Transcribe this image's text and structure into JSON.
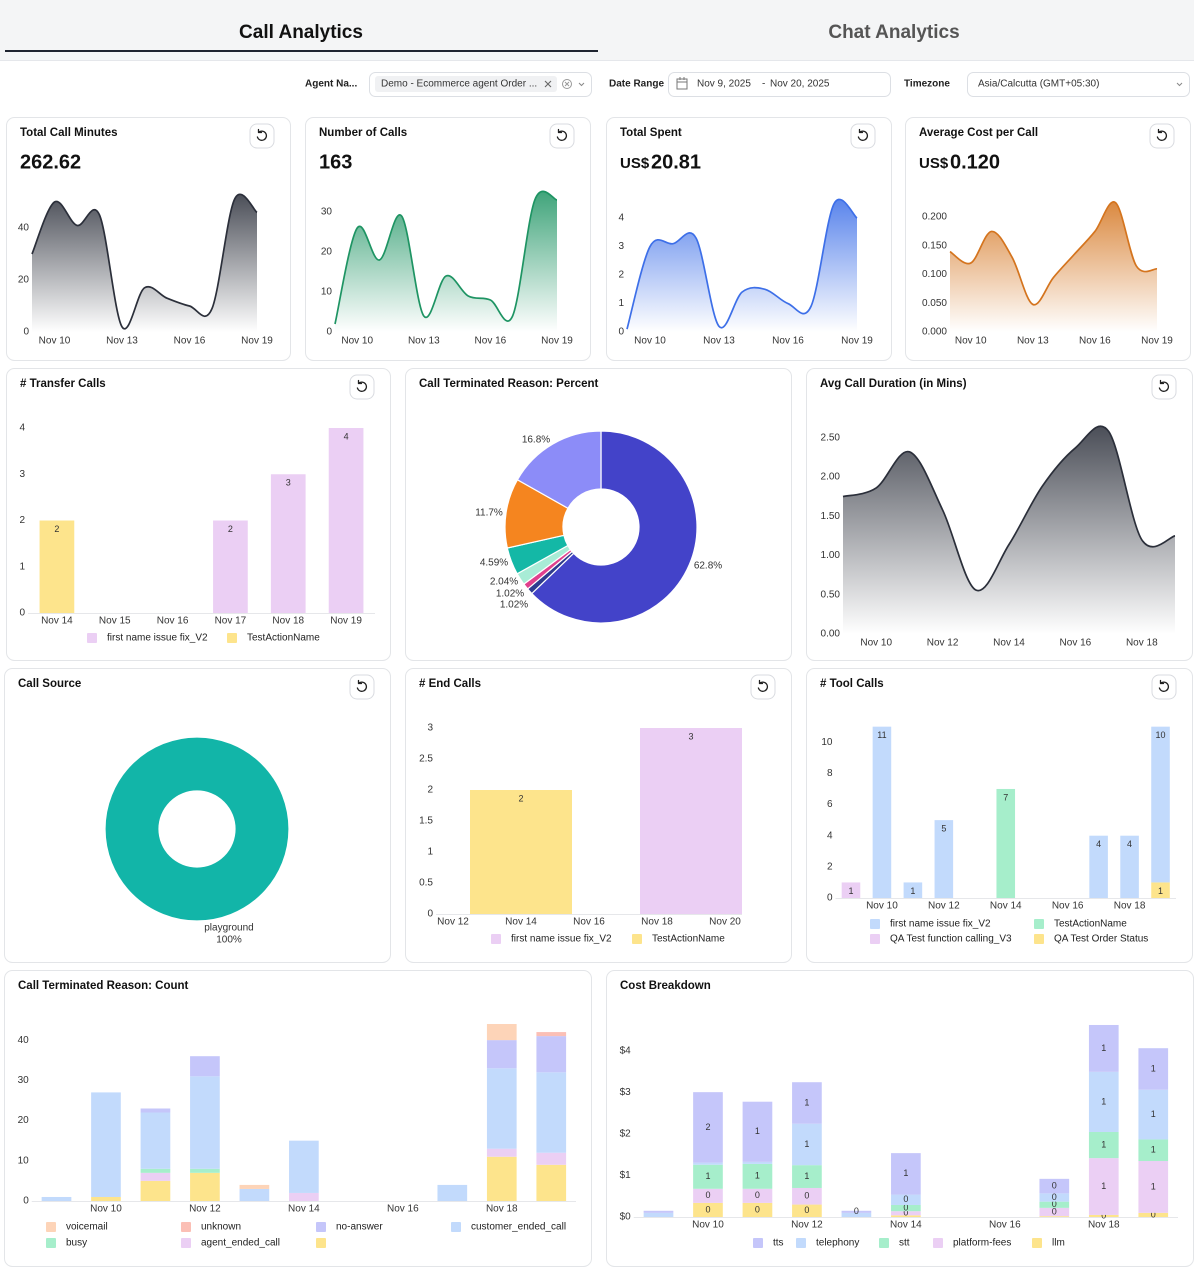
{
  "tabs": [
    {
      "label": "Call Analytics",
      "active": true
    },
    {
      "label": "Chat Analytics",
      "active": false
    }
  ],
  "filters": [
    {
      "label": "Agent Na...",
      "value": "Demo - Ecommerce agent Order ..."
    },
    {
      "label": "Date Range",
      "from": "Nov 9, 2025",
      "separator": "-",
      "to": "Nov 20, 2025"
    },
    {
      "label": "Timezone",
      "value": "Asia/Calcutta (GMT+05:30)"
    }
  ],
  "chart_data": [
    {
      "type": "area",
      "title": "Total Call Minutes",
      "summary": "262.62",
      "color": "#2b2f3a",
      "categories": [
        null,
        "Nov 10",
        null,
        null,
        "Nov 13",
        null,
        null,
        "Nov 16",
        null,
        null,
        "Nov 19"
      ],
      "values": [
        30,
        50,
        41,
        45,
        2,
        17,
        13,
        10,
        9,
        51,
        46
      ],
      "ylim": [
        0,
        55
      ],
      "yticks": [
        0,
        20,
        40
      ]
    },
    {
      "type": "area",
      "title": "Number of Calls",
      "summary": "163",
      "color": "#1e9463",
      "categories": [
        null,
        "Nov 10",
        null,
        null,
        "Nov 13",
        null,
        null,
        "Nov 16",
        null,
        null,
        "Nov 19"
      ],
      "values": [
        2,
        26,
        18,
        29,
        4,
        14,
        9,
        8,
        4,
        33,
        33
      ],
      "ylim": [
        0,
        35
      ],
      "yticks": [
        0,
        10,
        20,
        30
      ]
    },
    {
      "type": "area",
      "title": "Total Spent",
      "currency": "US$",
      "summary": "20.81",
      "color": "#3d6fe8",
      "categories": [
        null,
        "Nov 10",
        null,
        null,
        "Nov 13",
        null,
        null,
        "Nov 16",
        null,
        null,
        "Nov 19"
      ],
      "values": [
        0.1,
        3.0,
        3.1,
        3.3,
        0.2,
        1.4,
        1.5,
        1.0,
        0.9,
        4.5,
        4.0
      ],
      "ylim": [
        0,
        4.6
      ],
      "yticks": [
        0,
        1,
        2,
        3,
        4
      ]
    },
    {
      "type": "area",
      "title": "Average Cost per Call",
      "currency": "US$",
      "summary": "0.120",
      "color": "#d4741e",
      "categories": [
        null,
        "Nov 10",
        null,
        null,
        "Nov 13",
        null,
        null,
        "Nov 16",
        null,
        null,
        "Nov 19"
      ],
      "values": [
        0.14,
        0.12,
        0.175,
        0.13,
        0.048,
        0.095,
        0.135,
        0.175,
        0.225,
        0.115,
        0.11
      ],
      "ylim": [
        0,
        0.235
      ],
      "yticks": [
        {
          "value": 0,
          "label": "0.000"
        },
        {
          "value": 0.05,
          "label": "0.050"
        },
        {
          "value": 0.1,
          "label": "0.100"
        },
        {
          "value": 0.15,
          "label": "0.150"
        },
        {
          "value": 0.2,
          "label": "0.200"
        }
      ]
    },
    {
      "type": "bar",
      "title": "# Transfer Calls",
      "data_labels": true,
      "categories": [
        "Nov 14",
        "Nov 15",
        "Nov 16",
        "Nov 17",
        "Nov 18",
        "Nov 19"
      ],
      "series": [
        {
          "name": "first name issue fix_V2",
          "color": "#ebcff4",
          "values": [
            null,
            null,
            null,
            2,
            3,
            4
          ]
        },
        {
          "name": "TestActionName",
          "color": "#fde48c",
          "values": [
            2,
            null,
            null,
            null,
            null,
            null
          ]
        }
      ],
      "ylim": [
        0,
        4
      ],
      "yticks": [
        0,
        1,
        2,
        3,
        4
      ]
    },
    {
      "type": "donut",
      "title": "Call Terminated Reason: Percent",
      "values": [
        62.8,
        1.02,
        1.02,
        2.04,
        4.59,
        11.7,
        16.8
      ],
      "value_labels": [
        "62.8%",
        "1.02%",
        "1.02%",
        "2.04%",
        "4.59%",
        "11.7%",
        "16.8%"
      ],
      "colors": [
        "#4343c9",
        "#2f3b8f",
        "#e0408d",
        "#a8ecd6",
        "#14b8a6",
        "#f5851f",
        "#8c8cf8"
      ]
    },
    {
      "type": "area",
      "title": "Avg Call Duration (in Mins)",
      "color": "#2b2f3a",
      "categories": [
        null,
        "Nov 10",
        null,
        "Nov 12",
        null,
        "Nov 14",
        null,
        "Nov 16",
        null,
        "Nov 18",
        null
      ],
      "values": [
        1.75,
        1.86,
        2.32,
        1.58,
        0.56,
        1.14,
        1.88,
        2.37,
        2.58,
        1.2,
        1.25
      ],
      "ylim": [
        0,
        2.7
      ],
      "yticks": [
        {
          "value": 0,
          "label": "0.00"
        },
        {
          "value": 0.5,
          "label": "0.50"
        },
        {
          "value": 1,
          "label": "1.00"
        },
        {
          "value": 1.5,
          "label": "1.50"
        },
        {
          "value": 2,
          "label": "2.00"
        },
        {
          "value": 2.5,
          "label": "2.50"
        }
      ]
    },
    {
      "type": "donut",
      "title": "Call Source",
      "categories": [
        "playground"
      ],
      "values": [
        100
      ],
      "value_labels": [
        "100%"
      ],
      "colors": [
        "#12b5a8"
      ]
    },
    {
      "type": "bar",
      "title": "# End Calls",
      "data_labels": true,
      "categories": [
        "Nov 12",
        null,
        "Nov 14",
        null,
        "Nov 16",
        null,
        "Nov 18",
        null,
        "Nov 20"
      ],
      "series": [
        {
          "name": "first name issue fix_V2",
          "color": "#ebcff4",
          "values": [
            null,
            null,
            null,
            null,
            null,
            null,
            null,
            3,
            null
          ]
        },
        {
          "name": "TestActionName",
          "color": "#fde48c",
          "values": [
            null,
            null,
            2,
            null,
            null,
            null,
            null,
            null,
            null
          ]
        }
      ],
      "ylim": [
        0,
        3
      ],
      "yticks": [
        0,
        0.5,
        1,
        1.5,
        2,
        2.5,
        3
      ]
    },
    {
      "type": "bar",
      "title": "# Tool Calls",
      "stacked": true,
      "data_labels": true,
      "categories": [
        null,
        "Nov 10",
        null,
        "Nov 12",
        null,
        "Nov 14",
        null,
        "Nov 16",
        null,
        "Nov 18",
        null
      ],
      "series": [
        {
          "name": "first name issue fix_V2",
          "color": "#c2dafc",
          "values": [
            null,
            11,
            1,
            5,
            null,
            null,
            null,
            null,
            4,
            4,
            10
          ]
        },
        {
          "name": "TestActionName",
          "color": "#a6eecb",
          "values": [
            null,
            null,
            null,
            null,
            null,
            7,
            null,
            null,
            null,
            null,
            null
          ]
        },
        {
          "name": "QA Test function calling_V3",
          "color": "#ebcff4",
          "values": [
            1,
            null,
            null,
            null,
            null,
            null,
            null,
            null,
            null,
            null,
            null
          ]
        },
        {
          "name": "QA Test Order Status",
          "color": "#fde48c",
          "values": [
            null,
            null,
            null,
            null,
            null,
            null,
            null,
            null,
            null,
            null,
            1
          ]
        }
      ],
      "ylim": [
        0,
        11.3
      ],
      "yticks": [
        0,
        2,
        4,
        6,
        8,
        10
      ]
    },
    {
      "type": "bar",
      "title": "Call Terminated Reason: Count",
      "stacked": true,
      "categories": [
        null,
        "Nov 10",
        null,
        "Nov 12",
        null,
        "Nov 14",
        null,
        "Nov 16",
        null,
        "Nov 18",
        null
      ],
      "series": [
        {
          "name": "voicemail",
          "color": "#fdd4b8",
          "values": [
            null,
            null,
            null,
            null,
            1,
            null,
            null,
            null,
            null,
            4,
            null
          ]
        },
        {
          "name": "unknown",
          "color": "#fbbfb5",
          "values": [
            null,
            null,
            null,
            null,
            null,
            null,
            null,
            null,
            null,
            null,
            1
          ]
        },
        {
          "name": "no-answer",
          "color": "#c5c6fa",
          "values": [
            null,
            null,
            1,
            5,
            null,
            null,
            null,
            null,
            null,
            7,
            9
          ]
        },
        {
          "name": "customer_ended_call",
          "color": "#c2dafc",
          "values": [
            1,
            26,
            14,
            23,
            3,
            13,
            null,
            null,
            4,
            20,
            20
          ]
        },
        {
          "name": "busy",
          "color": "#a6eecb",
          "values": [
            null,
            null,
            1,
            1,
            null,
            null,
            null,
            null,
            null,
            null,
            null
          ]
        },
        {
          "name": "agent_ended_call",
          "color": "#ebcff4",
          "values": [
            null,
            null,
            2,
            null,
            null,
            2,
            null,
            null,
            null,
            2,
            3
          ]
        },
        {
          "name": null,
          "color": "#fde48c",
          "values": [
            null,
            1,
            5,
            7,
            null,
            null,
            null,
            null,
            null,
            11,
            9
          ]
        }
      ],
      "ylim": [
        0,
        45
      ],
      "yticks": [
        0,
        10,
        20,
        30,
        40
      ]
    },
    {
      "type": "bar",
      "title": "Cost Breakdown",
      "stacked": true,
      "categories": [
        null,
        "Nov 10",
        null,
        "Nov 12",
        null,
        "Nov 14",
        null,
        "Nov 16",
        null,
        "Nov 18",
        null
      ],
      "series": [
        {
          "name": "tts",
          "color": "#c5c6fa",
          "values": [
            0.05,
            1.7,
            1.45,
            1.0,
            0.05,
            1.0,
            null,
            null,
            0.35,
            1.13,
            1.0
          ],
          "value_labels": [
            null,
            "2",
            "1",
            "1",
            "0",
            "1",
            null,
            null,
            "0",
            "1",
            "1"
          ]
        },
        {
          "name": "telephony",
          "color": "#c2dafc",
          "values": [
            0.1,
            0.05,
            0.05,
            1.0,
            0.1,
            0.25,
            null,
            null,
            0.2,
            1.45,
            1.2
          ],
          "value_labels": [
            null,
            null,
            null,
            "1",
            null,
            "0",
            null,
            null,
            "0",
            "1",
            "1"
          ]
        },
        {
          "name": "stt",
          "color": "#a6eecb",
          "values": [
            null,
            0.58,
            0.6,
            0.55,
            null,
            0.15,
            null,
            null,
            0.15,
            0.63,
            0.52
          ],
          "value_labels": [
            null,
            "1",
            "1",
            "1",
            null,
            "0",
            null,
            null,
            "0",
            "1",
            "1"
          ]
        },
        {
          "name": "platform-fees",
          "color": "#ebcff4",
          "values": [
            null,
            0.34,
            0.34,
            0.4,
            null,
            0.1,
            null,
            null,
            0.2,
            1.37,
            1.25
          ],
          "value_labels": [
            null,
            "0",
            "0",
            "0",
            null,
            "0",
            null,
            null,
            "0",
            "1",
            "1"
          ]
        },
        {
          "name": "llm",
          "color": "#fde48c",
          "values": [
            null,
            0.34,
            0.34,
            0.3,
            null,
            0.04,
            null,
            null,
            0.02,
            0.05,
            0.1
          ],
          "value_labels": [
            null,
            "0",
            "0",
            "0",
            null,
            null,
            null,
            null,
            null,
            "0",
            "0"
          ]
        }
      ],
      "ylim": [
        0,
        4.75
      ],
      "yticks": [
        {
          "value": 0,
          "label": "$0"
        },
        {
          "value": 1,
          "label": "$1"
        },
        {
          "value": 2,
          "label": "$2"
        },
        {
          "value": 3,
          "label": "$3"
        },
        {
          "value": 4,
          "label": "$4"
        }
      ]
    }
  ]
}
